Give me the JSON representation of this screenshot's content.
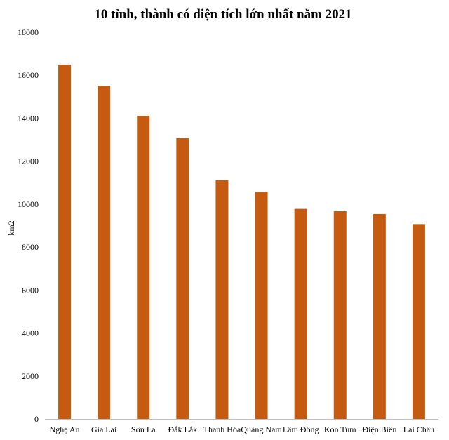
{
  "chart_data": {
    "type": "bar",
    "title": "10 tỉnh, thành có diện tích lớn nhất năm 2021",
    "ylabel": "km2",
    "xlabel": "",
    "categories": [
      "Nghệ An",
      "Gia Lai",
      "Sơn La",
      "Đắk Lắk",
      "Thanh Hóa",
      "Quảng Nam",
      "Lâm Đồng",
      "Kon Tum",
      "Điện Biên",
      "Lai Châu"
    ],
    "values": [
      16490,
      15510,
      14110,
      13070,
      11110,
      10570,
      9780,
      9670,
      9540,
      9070
    ],
    "ylim": [
      0,
      18000
    ],
    "yticks": [
      "0",
      "2000",
      "4000",
      "6000",
      "8000",
      "10000",
      "12000",
      "14000",
      "16000",
      "18000"
    ],
    "bar_color": "#C55A11",
    "grid": false,
    "legend": "none"
  }
}
